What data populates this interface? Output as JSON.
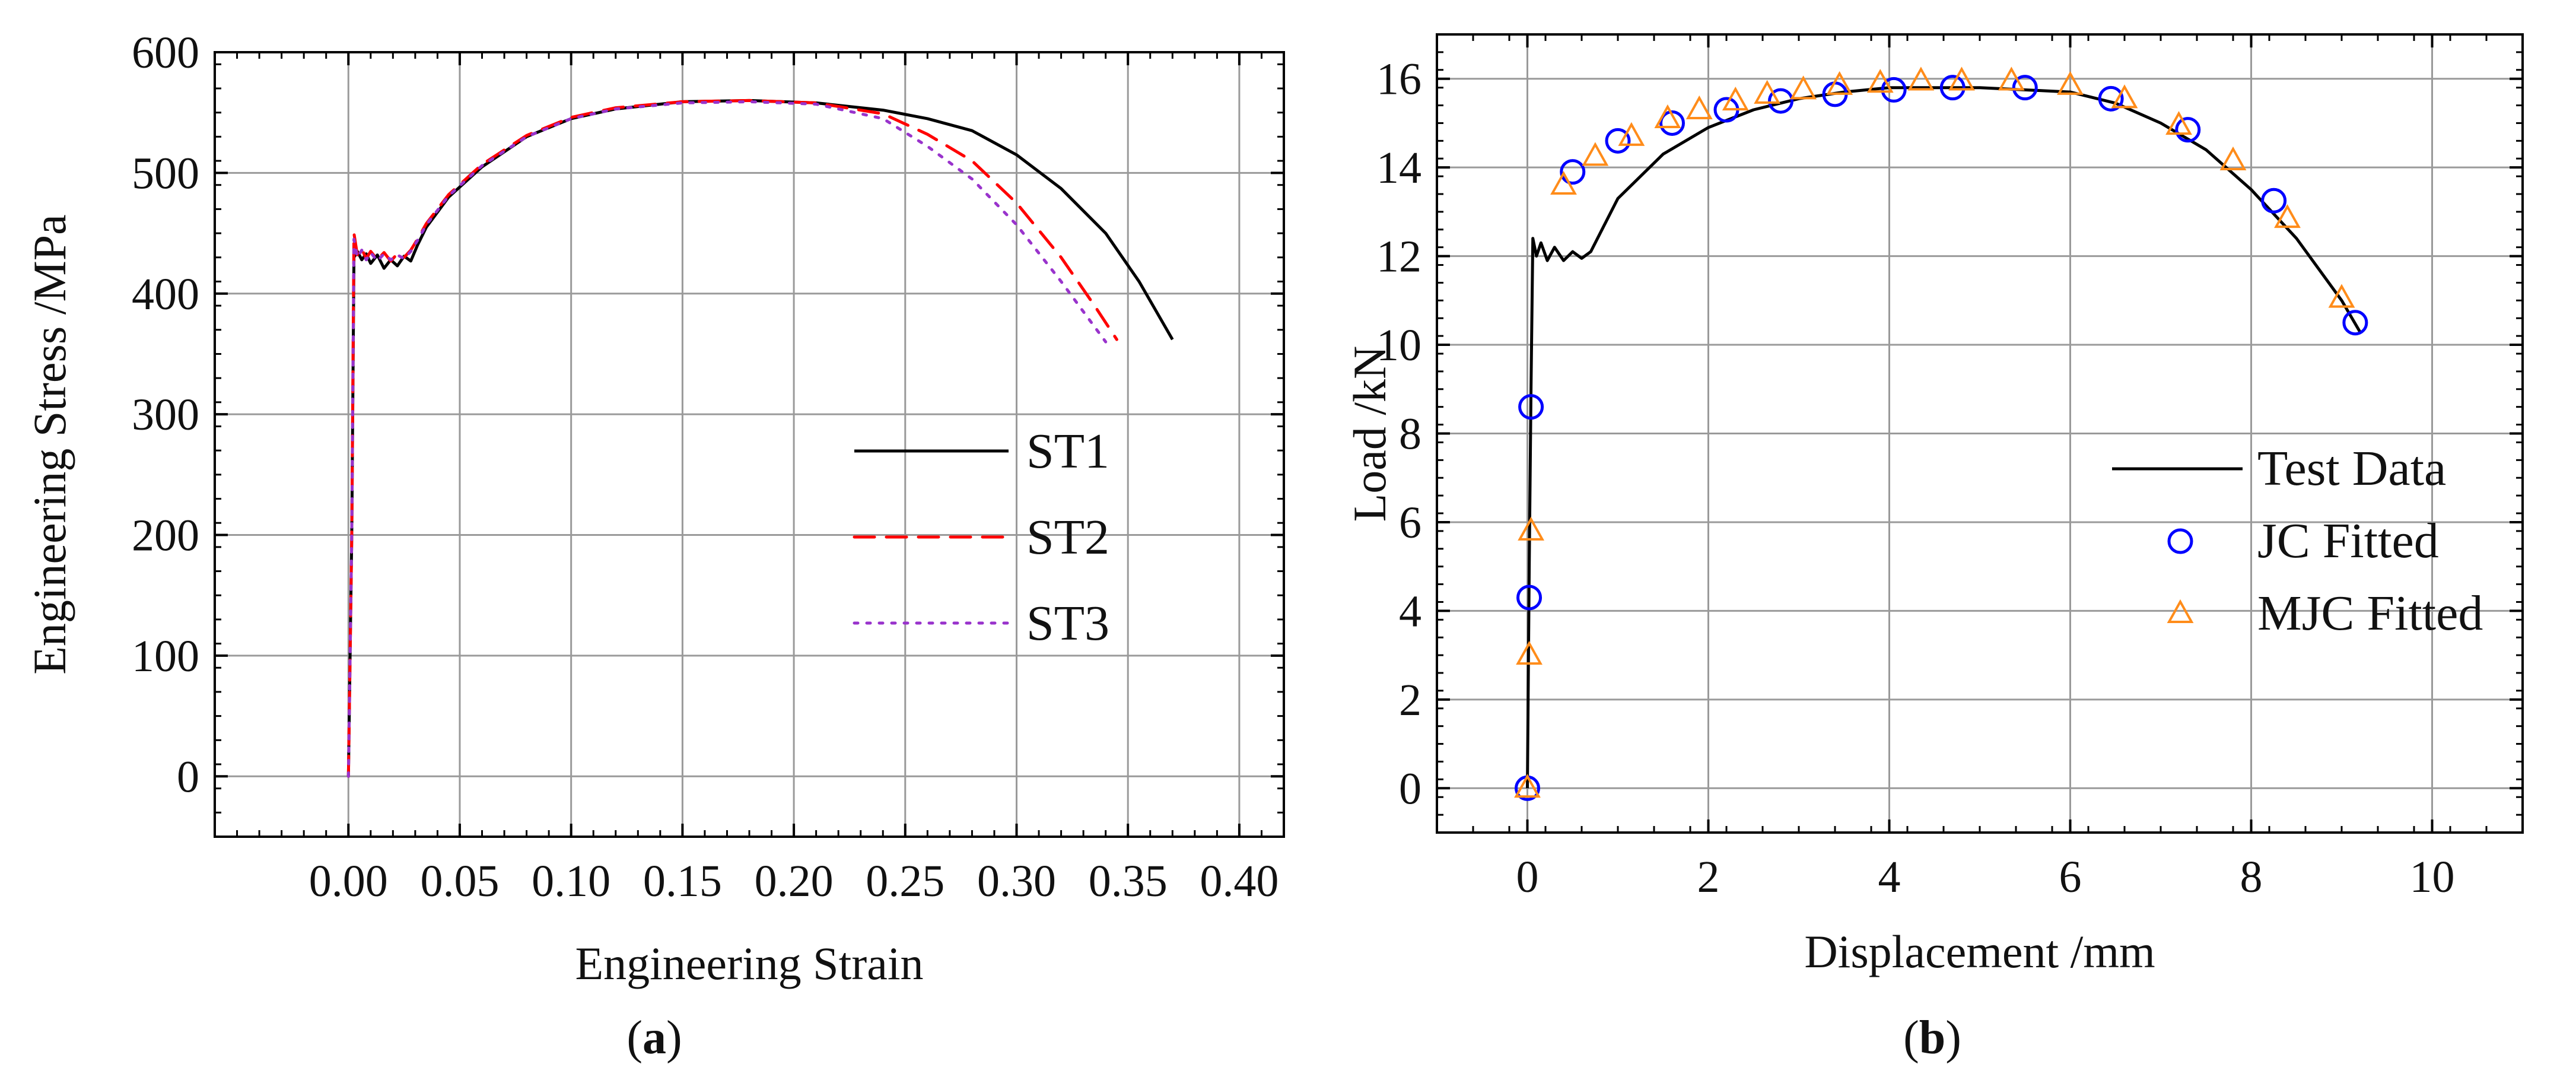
{
  "chart_data": [
    {
      "panel_label": {
        "open": "(",
        "letter": "a",
        "close": ")"
      },
      "type": "line",
      "xlabel": "Engineering Strain",
      "ylabel": "Engineering Stress /MPa",
      "xlim": [
        -0.06,
        0.42
      ],
      "ylim": [
        -50,
        600
      ],
      "xticks": [
        "0.00",
        "0.05",
        "0.10",
        "0.15",
        "0.20",
        "0.25",
        "0.30",
        "0.35",
        "0.40"
      ],
      "xtick_values": [
        0,
        0.05,
        0.1,
        0.15,
        0.2,
        0.25,
        0.3,
        0.35,
        0.4
      ],
      "yticks": [
        "0",
        "100",
        "200",
        "300",
        "400",
        "500",
        "600"
      ],
      "ytick_values": [
        0,
        100,
        200,
        300,
        400,
        500,
        600
      ],
      "grid": true,
      "legend_position": "center-right",
      "series": [
        {
          "name": "ST1",
          "style": "solid",
          "color": "#000000",
          "points": [
            [
              0,
              0
            ],
            [
              0.0015,
              200
            ],
            [
              0.0025,
              430
            ],
            [
              0.004,
              435
            ],
            [
              0.006,
              428
            ],
            [
              0.008,
              433
            ],
            [
              0.01,
              425
            ],
            [
              0.013,
              432
            ],
            [
              0.016,
              421
            ],
            [
              0.019,
              428
            ],
            [
              0.022,
              423
            ],
            [
              0.025,
              431
            ],
            [
              0.028,
              427
            ],
            [
              0.031,
              440
            ],
            [
              0.035,
              455
            ],
            [
              0.045,
              480
            ],
            [
              0.06,
              505
            ],
            [
              0.08,
              530
            ],
            [
              0.1,
              545
            ],
            [
              0.12,
              553
            ],
            [
              0.15,
              559
            ],
            [
              0.18,
              560
            ],
            [
              0.21,
              558
            ],
            [
              0.24,
              552
            ],
            [
              0.26,
              545
            ],
            [
              0.28,
              535
            ],
            [
              0.3,
              515
            ],
            [
              0.32,
              487
            ],
            [
              0.34,
              450
            ],
            [
              0.355,
              410
            ],
            [
              0.37,
              362
            ]
          ]
        },
        {
          "name": "ST2",
          "style": "dashed",
          "color": "#ff0000",
          "points": [
            [
              0,
              0
            ],
            [
              0.0015,
              200
            ],
            [
              0.0025,
              450
            ],
            [
              0.004,
              432
            ],
            [
              0.006,
              437
            ],
            [
              0.008,
              429
            ],
            [
              0.01,
              435
            ],
            [
              0.013,
              428
            ],
            [
              0.016,
              434
            ],
            [
              0.019,
              427
            ],
            [
              0.022,
              433
            ],
            [
              0.025,
              430
            ],
            [
              0.028,
              436
            ],
            [
              0.031,
              445
            ],
            [
              0.035,
              458
            ],
            [
              0.045,
              482
            ],
            [
              0.06,
              507
            ],
            [
              0.08,
              531
            ],
            [
              0.1,
              546
            ],
            [
              0.12,
              554
            ],
            [
              0.15,
              559
            ],
            [
              0.18,
              560
            ],
            [
              0.21,
              558
            ],
            [
              0.24,
              549
            ],
            [
              0.26,
              532
            ],
            [
              0.28,
              510
            ],
            [
              0.3,
              475
            ],
            [
              0.32,
              430
            ],
            [
              0.335,
              390
            ],
            [
              0.345,
              362
            ]
          ]
        },
        {
          "name": "ST3",
          "style": "dotted",
          "color": "#9933cc",
          "points": [
            [
              0,
              0
            ],
            [
              0.0015,
              200
            ],
            [
              0.0025,
              445
            ],
            [
              0.004,
              430
            ],
            [
              0.006,
              436
            ],
            [
              0.008,
              428
            ],
            [
              0.01,
              434
            ],
            [
              0.013,
              427
            ],
            [
              0.016,
              433
            ],
            [
              0.019,
              428
            ],
            [
              0.022,
              432
            ],
            [
              0.025,
              429
            ],
            [
              0.028,
              435
            ],
            [
              0.031,
              444
            ],
            [
              0.035,
              457
            ],
            [
              0.045,
              481
            ],
            [
              0.06,
              506
            ],
            [
              0.08,
              530
            ],
            [
              0.1,
              545
            ],
            [
              0.12,
              553
            ],
            [
              0.15,
              558
            ],
            [
              0.18,
              559
            ],
            [
              0.21,
              557
            ],
            [
              0.24,
              545
            ],
            [
              0.26,
              522
            ],
            [
              0.28,
              495
            ],
            [
              0.3,
              457
            ],
            [
              0.32,
              410
            ],
            [
              0.34,
              360
            ]
          ]
        }
      ]
    },
    {
      "panel_label": {
        "open": "(",
        "letter": "b",
        "close": ")"
      },
      "type": "line+scatter",
      "xlabel": "Displacement /mm",
      "ylabel": "Load /kN",
      "xlim": [
        -1,
        11
      ],
      "ylim": [
        -1,
        17
      ],
      "xticks": [
        "0",
        "2",
        "4",
        "6",
        "8",
        "10"
      ],
      "xtick_values": [
        0,
        2,
        4,
        6,
        8,
        10
      ],
      "yticks": [
        "0",
        "2",
        "4",
        "6",
        "8",
        "10",
        "12",
        "14",
        "16"
      ],
      "ytick_values": [
        0,
        2,
        4,
        6,
        8,
        10,
        12,
        14,
        16
      ],
      "grid": true,
      "legend_position": "lower-right",
      "series": [
        {
          "name": "Test Data",
          "style": "solid",
          "color": "#000000",
          "points": [
            [
              0,
              0
            ],
            [
              0.02,
              5
            ],
            [
              0.04,
              9
            ],
            [
              0.06,
              12.4
            ],
            [
              0.1,
              12.0
            ],
            [
              0.15,
              12.3
            ],
            [
              0.22,
              11.9
            ],
            [
              0.3,
              12.2
            ],
            [
              0.4,
              11.9
            ],
            [
              0.5,
              12.1
            ],
            [
              0.6,
              11.95
            ],
            [
              0.7,
              12.1
            ],
            [
              0.75,
              12.3
            ],
            [
              1.0,
              13.3
            ],
            [
              1.5,
              14.3
            ],
            [
              2.0,
              14.9
            ],
            [
              2.5,
              15.3
            ],
            [
              3.0,
              15.55
            ],
            [
              3.5,
              15.7
            ],
            [
              4.0,
              15.8
            ],
            [
              5.0,
              15.8
            ],
            [
              6.0,
              15.7
            ],
            [
              6.5,
              15.45
            ],
            [
              7.0,
              15.0
            ],
            [
              7.5,
              14.4
            ],
            [
              8.0,
              13.5
            ],
            [
              8.5,
              12.4
            ],
            [
              9.0,
              11.0
            ],
            [
              9.2,
              10.3
            ]
          ]
        },
        {
          "name": "JC Fitted",
          "marker": "circle",
          "color": "#0000ff",
          "points": [
            [
              0,
              0
            ],
            [
              0.02,
              4.3
            ],
            [
              0.04,
              8.6
            ],
            [
              0.5,
              13.9
            ],
            [
              1.0,
              14.6
            ],
            [
              1.6,
              15.0
            ],
            [
              2.2,
              15.3
            ],
            [
              2.8,
              15.5
            ],
            [
              3.4,
              15.65
            ],
            [
              4.05,
              15.75
            ],
            [
              4.7,
              15.8
            ],
            [
              5.5,
              15.8
            ],
            [
              6.45,
              15.55
            ],
            [
              7.3,
              14.85
            ],
            [
              8.25,
              13.25
            ],
            [
              9.15,
              10.5
            ]
          ]
        },
        {
          "name": "MJC Fitted",
          "marker": "triangle",
          "color": "#ff8c1a",
          "points": [
            [
              0,
              0
            ],
            [
              0.02,
              3.0
            ],
            [
              0.04,
              5.8
            ],
            [
              0.4,
              13.6
            ],
            [
              0.75,
              14.25
            ],
            [
              1.15,
              14.7
            ],
            [
              1.55,
              15.1
            ],
            [
              1.9,
              15.3
            ],
            [
              2.3,
              15.5
            ],
            [
              2.65,
              15.65
            ],
            [
              3.05,
              15.75
            ],
            [
              3.45,
              15.85
            ],
            [
              3.9,
              15.9
            ],
            [
              4.35,
              15.95
            ],
            [
              4.8,
              15.95
            ],
            [
              5.35,
              15.95
            ],
            [
              6.0,
              15.85
            ],
            [
              6.6,
              15.55
            ],
            [
              7.2,
              14.95
            ],
            [
              7.8,
              14.15
            ],
            [
              8.4,
              12.85
            ],
            [
              9.0,
              11.05
            ]
          ]
        }
      ]
    }
  ]
}
